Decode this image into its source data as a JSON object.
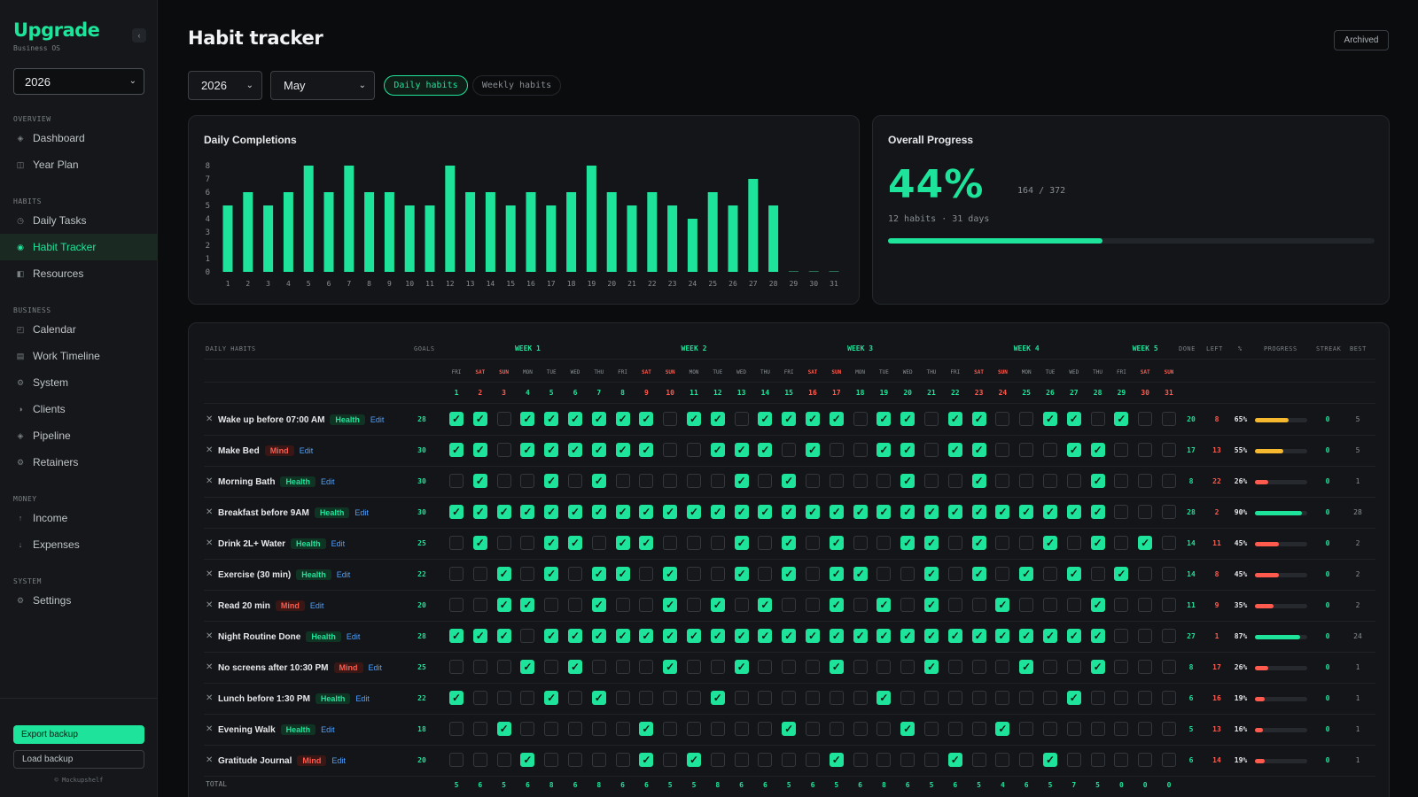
{
  "sidebar": {
    "logo": "Upgrade",
    "subtitle": "Business OS",
    "collapse_icon": "‹",
    "year": "2026",
    "groups": [
      {
        "label": "OVERVIEW",
        "items": [
          {
            "label": "Dashboard",
            "icon": "◈"
          },
          {
            "label": "Year Plan",
            "icon": "◫"
          }
        ]
      },
      {
        "label": "HABITS",
        "items": [
          {
            "label": "Daily Tasks",
            "icon": "◷"
          },
          {
            "label": "Habit Tracker",
            "icon": "◉",
            "active": true
          },
          {
            "label": "Resources",
            "icon": "◧"
          }
        ]
      },
      {
        "label": "BUSINESS",
        "items": [
          {
            "label": "Calendar",
            "icon": "◰"
          },
          {
            "label": "Work Timeline",
            "icon": "▤"
          },
          {
            "label": "System",
            "icon": "⚙"
          },
          {
            "label": "Clients",
            "icon": "◑"
          },
          {
            "label": "Pipeline",
            "icon": "◈"
          },
          {
            "label": "Retainers",
            "icon": "⚙"
          }
        ]
      },
      {
        "label": "MONEY",
        "items": [
          {
            "label": "Income",
            "icon": "↑"
          },
          {
            "label": "Expenses",
            "icon": "↓"
          }
        ]
      },
      {
        "label": "SYSTEM",
        "items": [
          {
            "label": "Settings",
            "icon": "⚙"
          }
        ]
      }
    ],
    "export_label": "Export backup",
    "load_label": "Load backup",
    "copyright": "© Mockupshelf"
  },
  "header": {
    "title": "Habit tracker",
    "archived_label": "Archived",
    "year": "2026",
    "month": "May",
    "tab_daily": "Daily habits",
    "tab_weekly": "Weekly habits"
  },
  "colors": {
    "accent": "#1ee39a",
    "weekend": "#ff5a4e",
    "mid": "#f5b82e"
  },
  "chart_card": {
    "title": "Daily Completions"
  },
  "chart_data": {
    "type": "bar",
    "title": "Daily Completions",
    "categories": [
      1,
      2,
      3,
      4,
      5,
      6,
      7,
      8,
      9,
      10,
      11,
      12,
      13,
      14,
      15,
      16,
      17,
      18,
      19,
      20,
      21,
      22,
      23,
      24,
      25,
      26,
      27,
      28,
      29,
      30,
      31
    ],
    "values": [
      5,
      6,
      5,
      6,
      8,
      6,
      8,
      6,
      6,
      5,
      5,
      8,
      6,
      6,
      5,
      6,
      5,
      6,
      8,
      6,
      5,
      6,
      5,
      4,
      6,
      5,
      7,
      5,
      0,
      0,
      0
    ],
    "ylim": [
      0,
      8
    ],
    "yticks": [
      0,
      1,
      2,
      3,
      4,
      5,
      6,
      7,
      8
    ],
    "grid": false
  },
  "progress": {
    "title": "Overall Progress",
    "percent_label": "44%",
    "fraction": 0.44,
    "count": "164 / 372",
    "subtitle": "12 habits · 31 days"
  },
  "table": {
    "headers": {
      "daily_habits": "DAILY HABITS",
      "goals": "GOALS",
      "done": "DONE",
      "left": "LEFT",
      "pct": "%",
      "progress": "PROGRESS",
      "streak": "STREAK",
      "best": "BEST"
    },
    "weeks": [
      {
        "label": "WEEK 1",
        "start": 1,
        "end": 7
      },
      {
        "label": "WEEK 2",
        "start": 8,
        "end": 14
      },
      {
        "label": "WEEK 3",
        "start": 15,
        "end": 21
      },
      {
        "label": "WEEK 4",
        "start": 22,
        "end": 28
      },
      {
        "label": "WEEK 5",
        "start": 29,
        "end": 31
      }
    ],
    "days": [
      {
        "d": "FRI",
        "n": "1"
      },
      {
        "d": "SAT",
        "n": "2",
        "we": true
      },
      {
        "d": "SUN",
        "n": "3",
        "we": true
      },
      {
        "d": "MON",
        "n": "4"
      },
      {
        "d": "TUE",
        "n": "5"
      },
      {
        "d": "WED",
        "n": "6"
      },
      {
        "d": "THU",
        "n": "7"
      },
      {
        "d": "FRI",
        "n": "8"
      },
      {
        "d": "SAT",
        "n": "9",
        "we": true
      },
      {
        "d": "SUN",
        "n": "10",
        "we": true
      },
      {
        "d": "MON",
        "n": "11"
      },
      {
        "d": "TUE",
        "n": "12"
      },
      {
        "d": "WED",
        "n": "13"
      },
      {
        "d": "THU",
        "n": "14"
      },
      {
        "d": "FRI",
        "n": "15"
      },
      {
        "d": "SAT",
        "n": "16",
        "we": true
      },
      {
        "d": "SUN",
        "n": "17",
        "we": true
      },
      {
        "d": "MON",
        "n": "18"
      },
      {
        "d": "TUE",
        "n": "19"
      },
      {
        "d": "WED",
        "n": "20"
      },
      {
        "d": "THU",
        "n": "21"
      },
      {
        "d": "FRI",
        "n": "22"
      },
      {
        "d": "SAT",
        "n": "23",
        "we": true
      },
      {
        "d": "SUN",
        "n": "24",
        "we": true
      },
      {
        "d": "MON",
        "n": "25"
      },
      {
        "d": "TUE",
        "n": "26"
      },
      {
        "d": "WED",
        "n": "27"
      },
      {
        "d": "THU",
        "n": "28"
      },
      {
        "d": "FRI",
        "n": "29"
      },
      {
        "d": "SAT",
        "n": "30",
        "we": true
      },
      {
        "d": "SUN",
        "n": "31",
        "we": true
      }
    ],
    "remove_icon": "✕",
    "edit_label": "Edit",
    "check_glyph": "✓",
    "habits": [
      {
        "name": "Wake up before 07:00 AM",
        "tag": "Health",
        "goal": "28",
        "done": "20",
        "left": "8",
        "pct": "65%",
        "progress": 0.65,
        "streak": "0",
        "best": "5",
        "checks": "1101111110110111101101100110100"
      },
      {
        "name": "Make Bed",
        "tag": "Mind",
        "goal": "30",
        "done": "17",
        "left": "13",
        "pct": "55%",
        "progress": 0.55,
        "streak": "0",
        "best": "5",
        "checks": "1101111110011101001101100011000"
      },
      {
        "name": "Morning Bath",
        "tag": "Health",
        "goal": "30",
        "done": "8",
        "left": "22",
        "pct": "26%",
        "progress": 0.26,
        "streak": "0",
        "best": "1",
        "checks": "0100101000001010000100100001000"
      },
      {
        "name": "Breakfast before 9AM",
        "tag": "Health",
        "goal": "30",
        "done": "28",
        "left": "2",
        "pct": "90%",
        "progress": 0.9,
        "streak": "0",
        "best": "28",
        "checks": "1111111111111111111111111111000"
      },
      {
        "name": "Drink 2L+ Water",
        "tag": "Health",
        "goal": "25",
        "done": "14",
        "left": "11",
        "pct": "45%",
        "progress": 0.45,
        "streak": "0",
        "best": "2",
        "checks": "0100110110001010100110100101010"
      },
      {
        "name": "Exercise (30 min)",
        "tag": "Health",
        "goal": "22",
        "done": "14",
        "left": "8",
        "pct": "45%",
        "progress": 0.45,
        "streak": "0",
        "best": "2",
        "checks": "0010101101001010110010101010100"
      },
      {
        "name": "Read 20 min",
        "tag": "Mind",
        "goal": "20",
        "done": "11",
        "left": "9",
        "pct": "35%",
        "progress": 0.35,
        "streak": "0",
        "best": "2",
        "checks": "0011001001010100101010010001000"
      },
      {
        "name": "Night Routine Done",
        "tag": "Health",
        "goal": "28",
        "done": "27",
        "left": "1",
        "pct": "87%",
        "progress": 0.87,
        "streak": "0",
        "best": "24",
        "checks": "1110111111111111111111111111000"
      },
      {
        "name": "No screens after 10:30 PM",
        "tag": "Mind",
        "goal": "25",
        "done": "8",
        "left": "17",
        "pct": "26%",
        "progress": 0.26,
        "streak": "0",
        "best": "1",
        "checks": "0001010001001000100010001001000"
      },
      {
        "name": "Lunch before 1:30 PM",
        "tag": "Health",
        "goal": "22",
        "done": "6",
        "left": "16",
        "pct": "19%",
        "progress": 0.19,
        "streak": "0",
        "best": "1",
        "checks": "1000101000010000001000000010000"
      },
      {
        "name": "Evening Walk",
        "tag": "Health",
        "goal": "18",
        "done": "5",
        "left": "13",
        "pct": "16%",
        "progress": 0.16,
        "streak": "0",
        "best": "1",
        "checks": "0010000010000010000100010000000"
      },
      {
        "name": "Gratitude Journal",
        "tag": "Mind",
        "goal": "20",
        "done": "6",
        "left": "14",
        "pct": "19%",
        "progress": 0.19,
        "streak": "0",
        "best": "1",
        "checks": "0001000010100000100001000100000"
      }
    ],
    "total_label": "TOTAL",
    "totals": [
      "5",
      "6",
      "5",
      "6",
      "8",
      "6",
      "8",
      "6",
      "6",
      "5",
      "5",
      "8",
      "6",
      "6",
      "5",
      "6",
      "5",
      "6",
      "8",
      "6",
      "5",
      "6",
      "5",
      "4",
      "6",
      "5",
      "7",
      "5",
      "0",
      "0",
      "0"
    ]
  }
}
